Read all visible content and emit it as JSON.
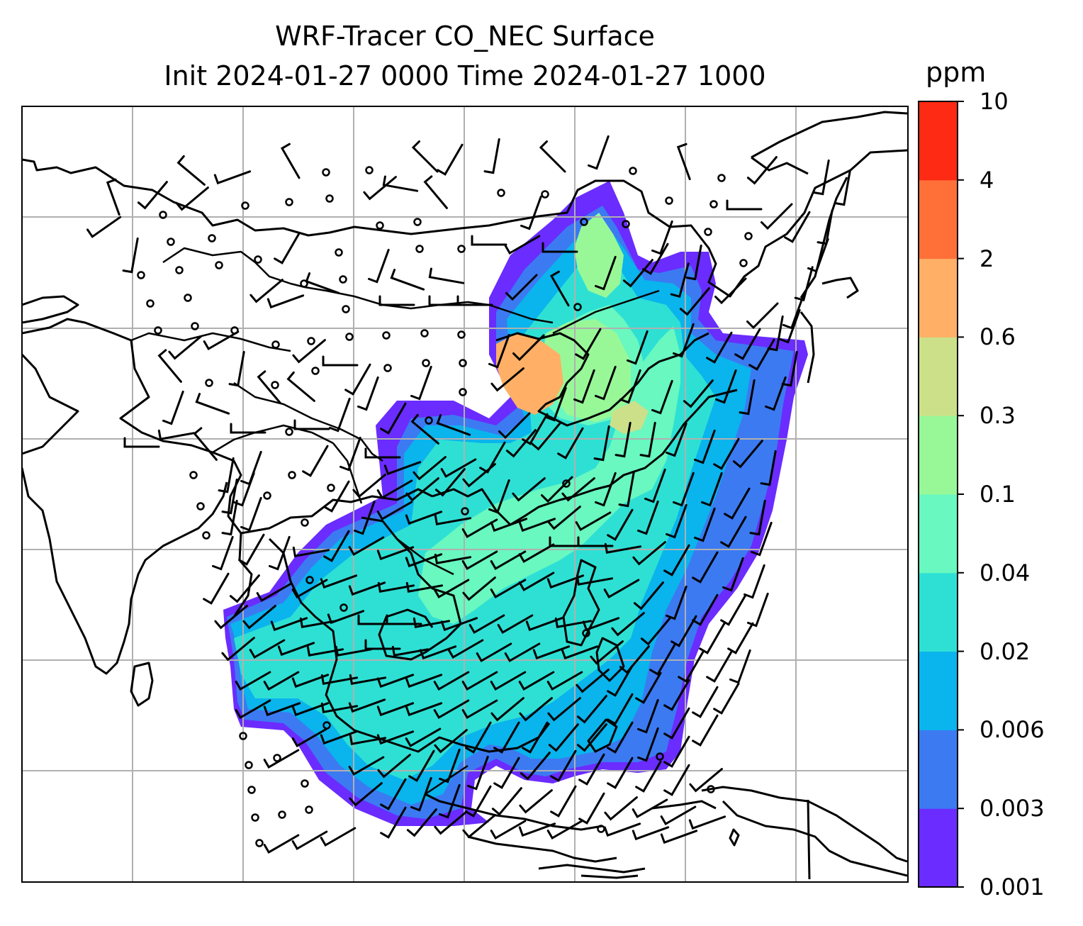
{
  "title_line1": "WRF-Tracer CO_NEC Surface",
  "title_line2": "Init 2024-01-27 0000 Time 2024-01-27 1000",
  "colorbar": {
    "unit": "ppm",
    "tick_labels": [
      "10",
      "4",
      "2",
      "0.6",
      "0.3",
      "0.1",
      "0.04",
      "0.02",
      "0.006",
      "0.003",
      "0.001"
    ],
    "colors": [
      "#6a2cff",
      "#3c7af2",
      "#0ab4ec",
      "#2ee0d4",
      "#68f8c0",
      "#98f898",
      "#cce08a",
      "#ffb066",
      "#ff7038",
      "#ff2a14"
    ]
  },
  "map": {
    "grid": true,
    "overlays": [
      "coastlines",
      "country-borders",
      "wind-barbs"
    ],
    "colors": {
      "gridline": "#b0b0b0",
      "coastline": "#000000"
    }
  }
}
